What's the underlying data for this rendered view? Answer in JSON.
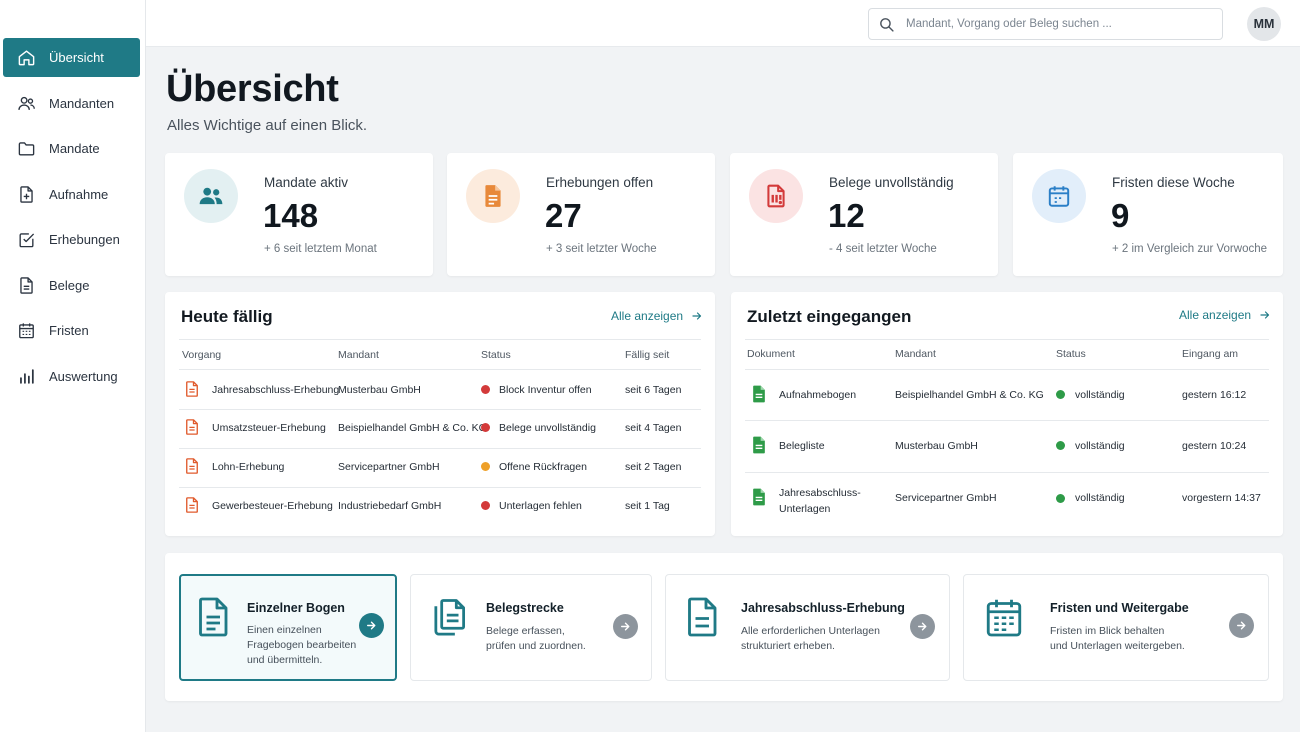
{
  "sidebar": {
    "items": [
      {
        "label": "Übersicht",
        "icon": "home-icon"
      },
      {
        "label": "Mandanten",
        "icon": "users-icon"
      },
      {
        "label": "Mandate",
        "icon": "folder-icon"
      },
      {
        "label": "Aufnahme",
        "icon": "file-plus-icon"
      },
      {
        "label": "Erhebungen",
        "icon": "checkbox-icon"
      },
      {
        "label": "Belege",
        "icon": "document-icon"
      },
      {
        "label": "Fristen",
        "icon": "calendar-icon"
      },
      {
        "label": "Auswertung",
        "icon": "bar-chart-icon"
      }
    ]
  },
  "header": {
    "search_placeholder": "Mandant, Vorgang oder Beleg suchen ...",
    "avatar_initials": "MM"
  },
  "page": {
    "title": "Übersicht",
    "subtitle": "Alles Wichtige auf einen Blick."
  },
  "stats": [
    {
      "label": "Mandate aktiv",
      "value": "148",
      "delta": "+ 6 seit letztem Monat",
      "icon": "users-icon",
      "color": "#1f7a86"
    },
    {
      "label": "Erhebungen offen",
      "value": "27",
      "delta": "+ 3 seit letzter Woche",
      "icon": "file-icon",
      "color": "#e8893a"
    },
    {
      "label": "Belege unvollständig",
      "value": "12",
      "delta": "- 4 seit letzter Woche",
      "icon": "file-alert-icon",
      "color": "#d33a3a"
    },
    {
      "label": "Fristen diese Woche",
      "value": "9",
      "delta": "+ 2 im Vergleich zur Vorwoche",
      "icon": "calendar-icon",
      "color": "#2b7fc7"
    }
  ],
  "due_today": {
    "title": "Heute fällig",
    "link": "Alle anzeigen",
    "columns": [
      "Vorgang",
      "Mandant",
      "Status",
      "Fällig seit"
    ],
    "rows": [
      {
        "vorgang": "Jahresabschluss-Erhebung",
        "mandant": "Musterbau GmbH",
        "status": "Block Inventur offen",
        "status_color": "#d33a3a",
        "faellig": "seit 6 Tagen"
      },
      {
        "vorgang": "Umsatzsteuer-Erhebung",
        "mandant": "Beispielhandel GmbH & Co. KG",
        "status": "Belege unvollständig",
        "status_color": "#d33a3a",
        "faellig": "seit 4 Tagen"
      },
      {
        "vorgang": "Lohn-Erhebung",
        "mandant": "Servicepartner GmbH",
        "status": "Offene Rückfragen",
        "status_color": "#eea029",
        "faellig": "seit 2 Tagen"
      },
      {
        "vorgang": "Gewerbesteuer-Erhebung",
        "mandant": "Industriebedarf GmbH",
        "status": "Unterlagen fehlen",
        "status_color": "#d33a3a",
        "faellig": "seit 1 Tag"
      }
    ]
  },
  "recent": {
    "title": "Zuletzt eingegangen",
    "link": "Alle anzeigen",
    "columns": [
      "Dokument",
      "Mandant",
      "Status",
      "Eingang am"
    ],
    "rows": [
      {
        "dokument": "Aufnahmebogen",
        "mandant": "Beispielhandel GmbH & Co. KG",
        "status": "vollständig",
        "eingang": "gestern 16:12"
      },
      {
        "dokument": "Belegliste",
        "mandant": "Musterbau GmbH",
        "status": "vollständig",
        "eingang": "gestern 10:24"
      },
      {
        "dokument": "Jahresabschluss-\nUnterlagen",
        "mandant": "Servicepartner GmbH",
        "status": "vollständig",
        "eingang": "vorgestern 14:37"
      }
    ],
    "status_color": "#2e9b48"
  },
  "actions": [
    {
      "title": "Einzelner Bogen",
      "desc": "Einen einzelnen\nFragebogen bearbeiten\nund übermitteln.",
      "icon": "document-icon"
    },
    {
      "title": "Belegstrecke",
      "desc": "Belege erfassen,\nprüfen und zuordnen.",
      "icon": "documents-stack-icon"
    },
    {
      "title": "Jahresabschluss-Erhebung",
      "desc": "Alle erforderlichen Unterlagen\nstrukturiert erheben.",
      "icon": "document-lines-icon"
    },
    {
      "title": "Fristen und Weitergabe",
      "desc": "Fristen im Blick behalten\nund Unterlagen weitergeben.",
      "icon": "calendar-icon"
    }
  ],
  "colors": {
    "accent": "#1f7a86",
    "danger": "#d33a3a",
    "warning": "#eea029",
    "success": "#2e9b48"
  }
}
